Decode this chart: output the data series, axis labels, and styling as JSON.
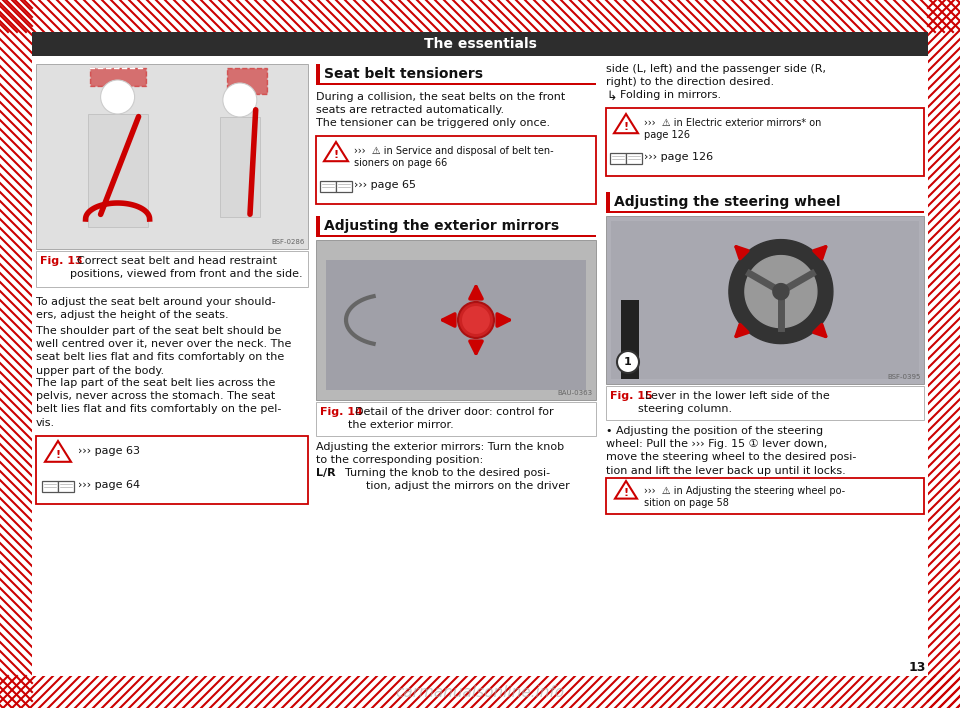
{
  "bg_color": "#ffffff",
  "hatch_color": "#cc0000",
  "header_bg": "#2d2d2d",
  "header_text": "The essentials",
  "header_text_color": "#ffffff",
  "header_fontsize": 10,
  "page_number": "13",
  "col1": {
    "fig_caption_bold": "Fig. 13",
    "fig_caption_rest": "  Correct seat belt and head restraint\npositions, viewed from front and the side.",
    "body_paragraphs": [
      "To adjust the seat belt around your should-\ners, adjust the height of the seats.",
      "The shoulder part of the seat belt should be\nwell centred over it, never over the neck. The\nseat belt lies flat and fits comfortably on the\nupper part of the body.",
      "The lap part of the seat belt lies across the\npelvis, never across the stomach. The seat\nbelt lies flat and fits comfortably on the pel-\nvis."
    ],
    "ref1": "››› page 63",
    "ref2": "››› page 64"
  },
  "col2": {
    "section1_title": "Seat belt tensioners",
    "section1_body1": "During a collision, the seat belts on the front\nseats are retracted automatically.",
    "section1_body2": "The tensioner can be triggered only once.",
    "section1_warn": "›››  ⚠ in Service and disposal of belt ten-\nsioners on page 66",
    "section1_ref": "››› page 65",
    "section2_title": "Adjusting the exterior mirrors",
    "fig14_bold": "Fig. 14",
    "fig14_rest": "  Detail of the driver door: control for\nthe exterior mirror.",
    "section2_body1": "Adjusting the exterior mirrors: Turn the knob\nto the corresponding position:",
    "section2_LR_label": "L/R",
    "section2_LR_text": "  Turning the knob to the desired posi-\n        tion, adjust the mirrors on the driver"
  },
  "col3": {
    "body_top": "side (L, left) and the passenger side (R,\nright) to the direction desired.",
    "folding": "  Folding in mirrors.",
    "warn1": "›››  ⚠ in Electric exterior mirrors* on\npage 126",
    "ref1": "››› page 126",
    "section3_title": "Adjusting the steering wheel",
    "fig15_bold": "Fig. 15",
    "fig15_rest": "  Lever in the lower left side of the\nsteering column.",
    "bullet": "• Adjusting the position of the steering\nwheel: Pull the ››› Fig. 15 ① lever down,\nmove the steering wheel to the desired posi-\ntion and lift the lever back up until it locks.",
    "warn2": "›››  ⚠ in Adjusting the steering wheel po-\nsition on page 58"
  },
  "font_body": 8.0,
  "font_title": 10.0,
  "font_caption": 8.0,
  "font_small": 7.0
}
